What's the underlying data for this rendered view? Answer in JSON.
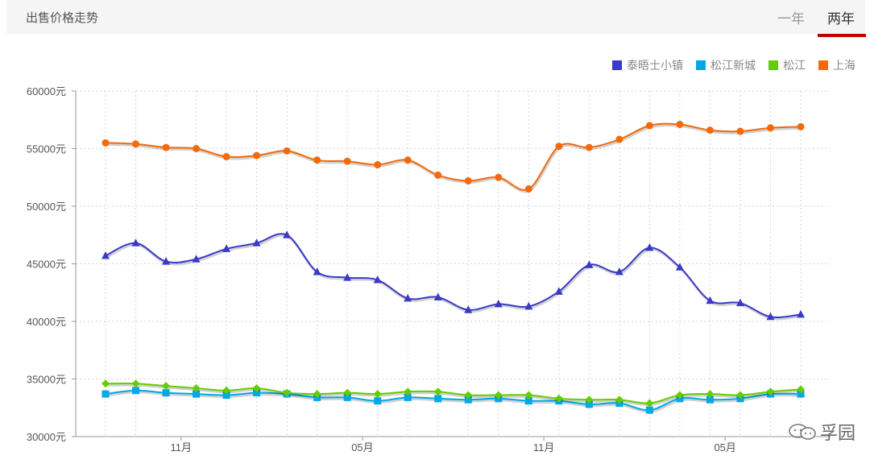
{
  "header": {
    "title": "出售价格走势",
    "tabs": [
      {
        "label": "一年",
        "active": false
      },
      {
        "label": "两年",
        "active": true
      }
    ],
    "accent": "#c40000"
  },
  "watermark": {
    "text": "孚园"
  },
  "chart_data": {
    "type": "line",
    "x_tick_labels": [
      "11月",
      "05月",
      "11月",
      "05月"
    ],
    "x_tick_index": [
      3,
      9,
      15,
      21
    ],
    "y_tick_labels": [
      "30000元",
      "35000元",
      "40000元",
      "45000元",
      "50000元",
      "55000元",
      "60000元"
    ],
    "ylim": [
      30000,
      60000
    ],
    "grid": true,
    "legend_position": "top-right",
    "series": [
      {
        "name": "泰晤士小镇",
        "color": "#3a3ac8",
        "marker": "triangle",
        "values": [
          45700,
          46800,
          45200,
          45400,
          46300,
          46800,
          47500,
          44300,
          43800,
          43600,
          42000,
          42100,
          41000,
          41500,
          41300,
          42600,
          44900,
          44300,
          46400,
          44700,
          41800,
          41600,
          40400,
          40600
        ]
      },
      {
        "name": "松江新城",
        "color": "#00a8e6",
        "marker": "square",
        "values": [
          33700,
          34000,
          33800,
          33700,
          33600,
          33800,
          33700,
          33400,
          33400,
          33100,
          33400,
          33300,
          33200,
          33300,
          33100,
          33100,
          32800,
          32900,
          32300,
          33300,
          33200,
          33300,
          33700,
          33700
        ]
      },
      {
        "name": "松江",
        "color": "#66cc00",
        "marker": "diamond",
        "values": [
          34600,
          34600,
          34400,
          34200,
          34000,
          34200,
          33800,
          33700,
          33800,
          33700,
          33900,
          33900,
          33600,
          33600,
          33600,
          33300,
          33200,
          33200,
          32900,
          33600,
          33700,
          33600,
          33900,
          34100
        ]
      },
      {
        "name": "上海",
        "color": "#f26a0c",
        "marker": "circle",
        "values": [
          55500,
          55400,
          55100,
          55000,
          54300,
          54400,
          54800,
          54000,
          53900,
          53600,
          54000,
          52700,
          52200,
          52500,
          51500,
          55200,
          55100,
          55800,
          57000,
          57100,
          56600,
          56500,
          56800,
          56900
        ]
      }
    ]
  }
}
